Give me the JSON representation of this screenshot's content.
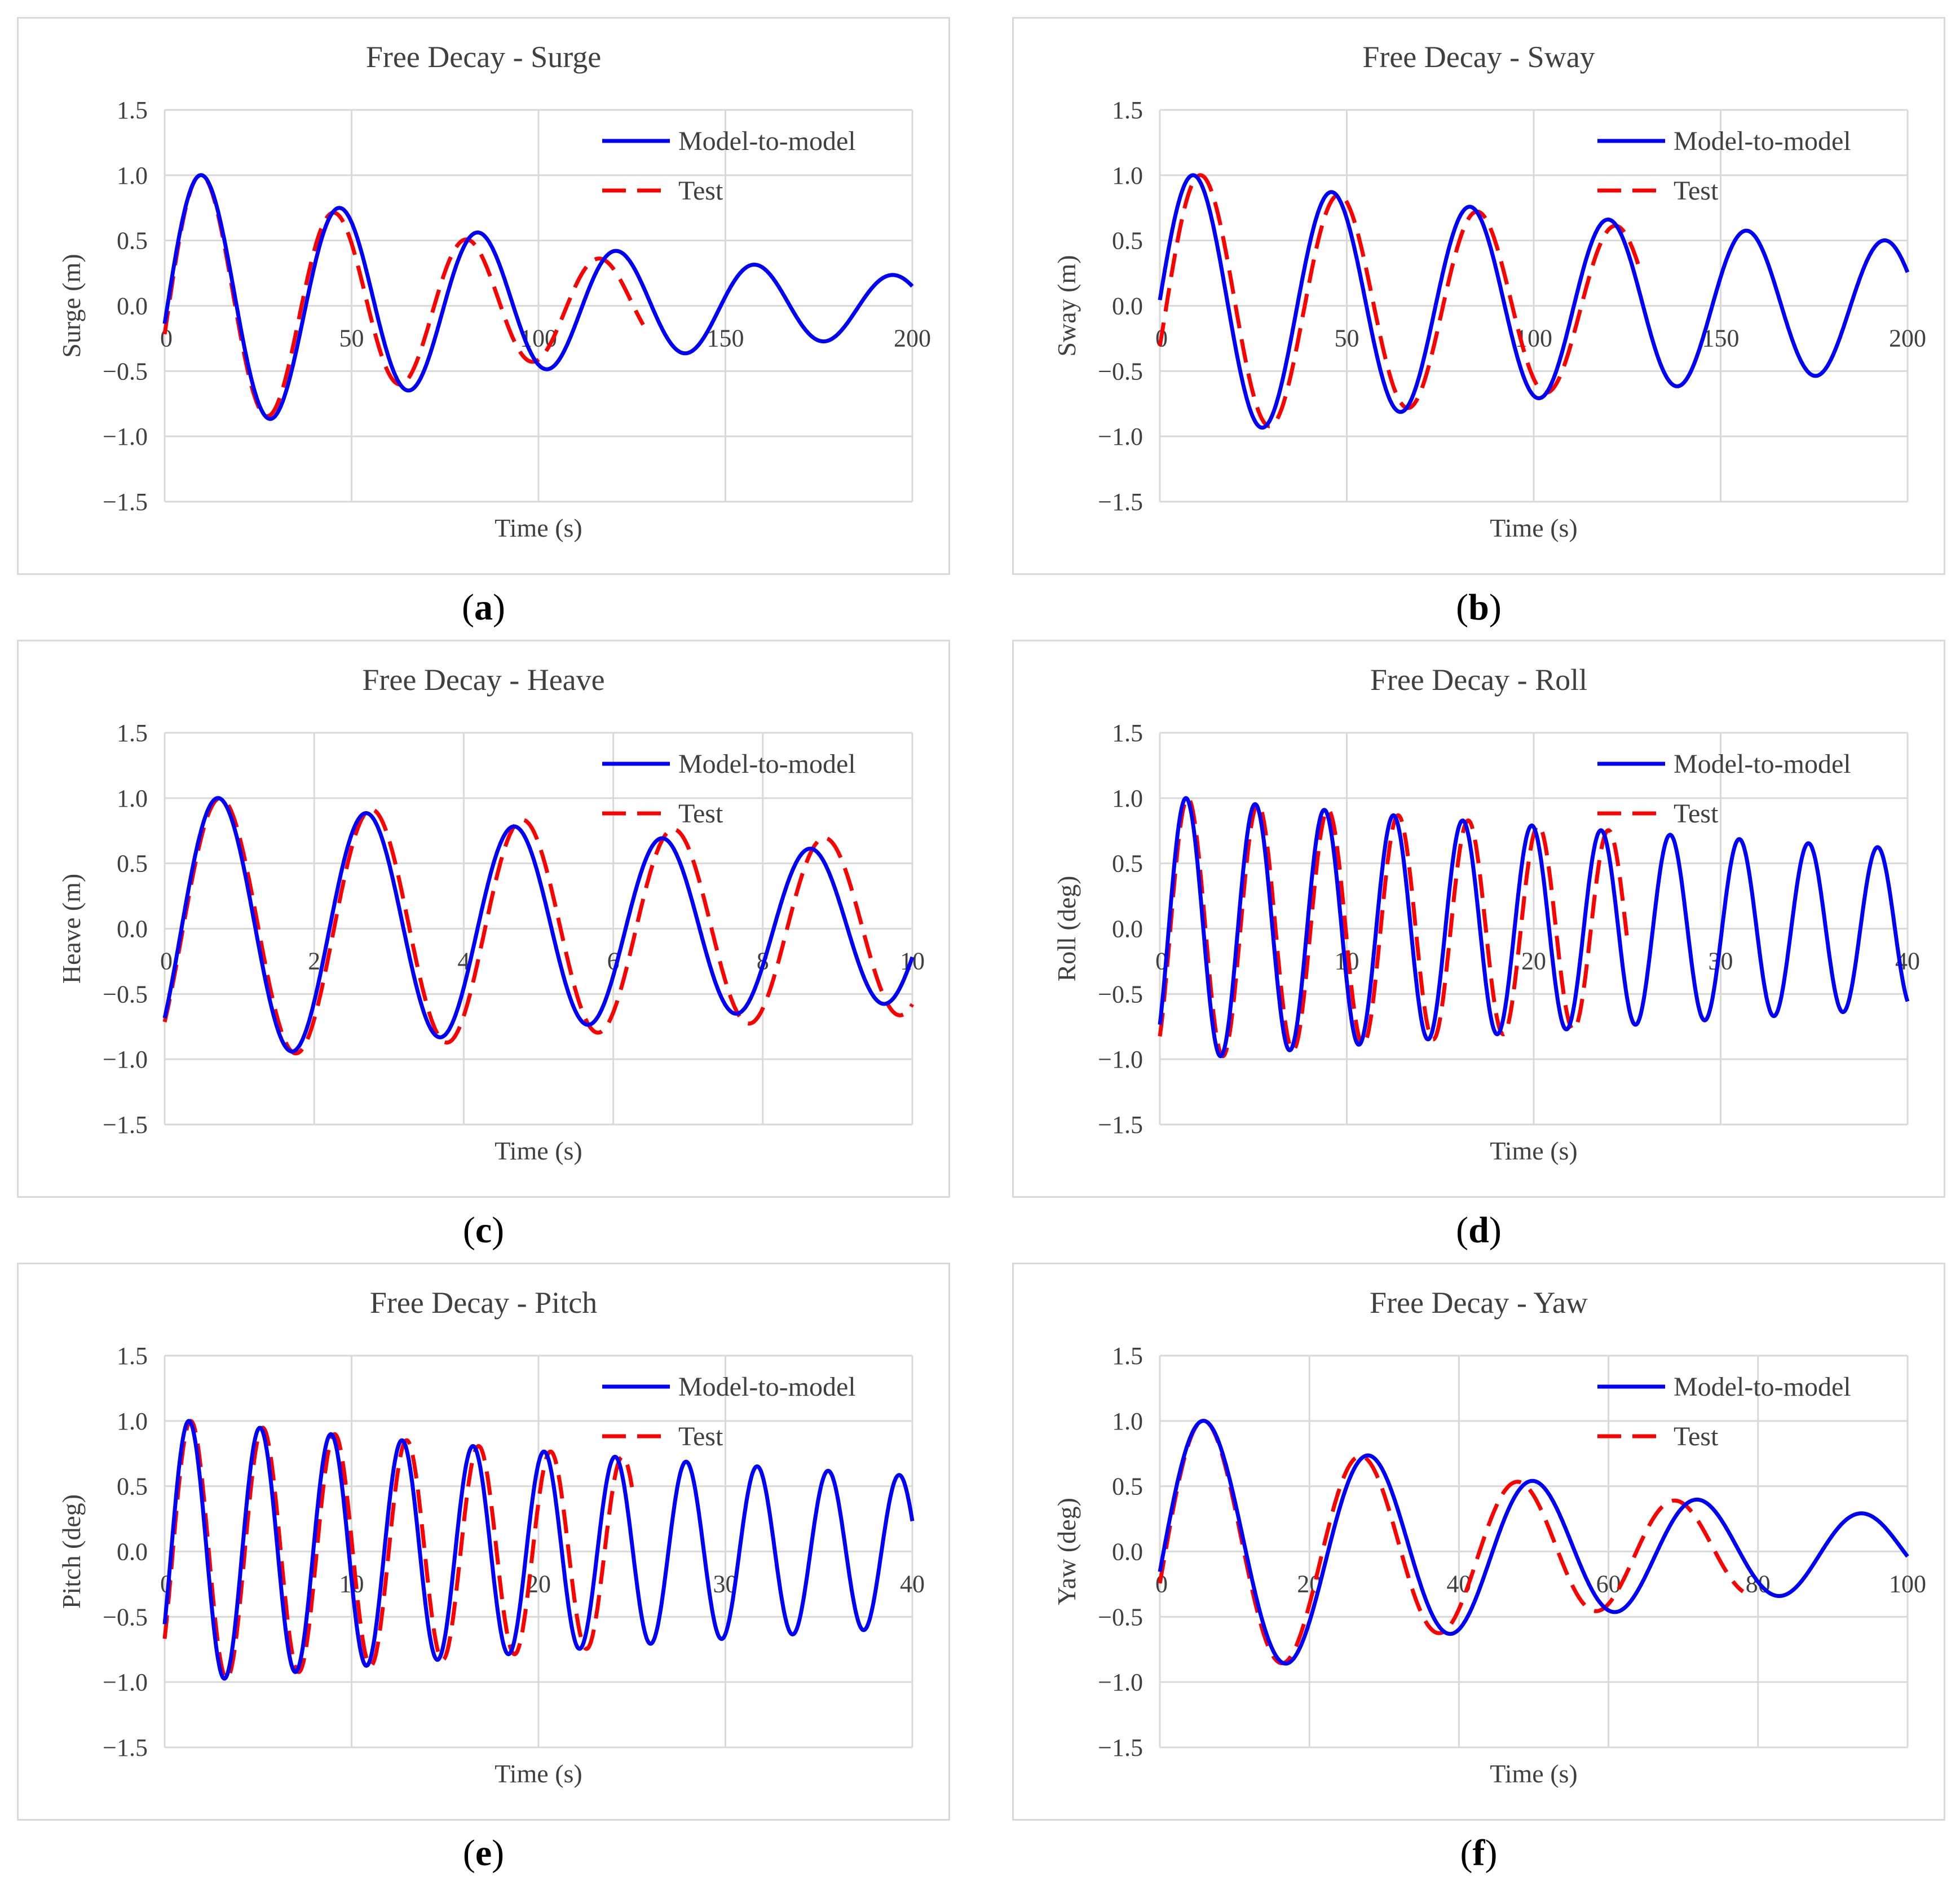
{
  "chart_data": [
    {
      "id": "a",
      "type": "line",
      "title": "Free Decay  - Surge",
      "xlabel": "Time (s)",
      "ylabel": "Surge (m)",
      "xlim": [
        0,
        200
      ],
      "ylim": [
        -1.5,
        1.5
      ],
      "xticks": [
        0,
        50,
        100,
        150,
        200
      ],
      "yticks": [
        -1.5,
        -1.0,
        -0.5,
        0.0,
        0.5,
        1.0,
        1.5
      ],
      "ytick_labels": [
        "−1.5",
        "−1.0",
        "−0.5",
        "0.0",
        "0.5",
        "1.0",
        "1.5"
      ],
      "legend": [
        "Model-to-model",
        "Test"
      ],
      "caption": "a",
      "series": [
        {
          "name": "Model-to-model",
          "color": "#0000ff",
          "style": "solid",
          "x0": 0,
          "x1": 200,
          "A0": 1.0,
          "period": 37,
          "zeta": 0.046,
          "t0": 10
        },
        {
          "name": "Test",
          "color": "#ff0000",
          "style": "dashed",
          "x0": 0,
          "x1": 128,
          "A0": 1.0,
          "period": 35.5,
          "zeta": 0.054,
          "t0": 10
        }
      ]
    },
    {
      "id": "b",
      "type": "line",
      "title": "Free Decay  - Sway",
      "xlabel": "Time (s)",
      "ylabel": "Sway (m)",
      "xlim": [
        0,
        200
      ],
      "ylim": [
        -1.5,
        1.5
      ],
      "xticks": [
        0,
        50,
        100,
        150,
        200
      ],
      "yticks": [
        -1.5,
        -1.0,
        -0.5,
        0.0,
        0.5,
        1.0,
        1.5
      ],
      "ytick_labels": [
        "−1.5",
        "−1.0",
        "−0.5",
        "0.0",
        "0.5",
        "1.0",
        "1.5"
      ],
      "legend": [
        "Model-to-model",
        "Test"
      ],
      "caption": "b",
      "series": [
        {
          "name": "Model-to-model",
          "color": "#0000ff",
          "style": "solid",
          "x0": 0,
          "x1": 200,
          "A0": 1.0,
          "period": 37,
          "zeta": 0.022,
          "t0": 9
        },
        {
          "name": "Test",
          "color": "#ff0000",
          "style": "dashed",
          "x0": 0,
          "x1": 128,
          "A0": 1.0,
          "period": 37,
          "zeta": 0.026,
          "t0": 11
        }
      ]
    },
    {
      "id": "c",
      "type": "line",
      "title": "Free Decay  - Heave",
      "xlabel": "Time (s)",
      "ylabel": "Heave (m)",
      "xlim": [
        0,
        10
      ],
      "ylim": [
        -1.5,
        1.5
      ],
      "xticks": [
        0,
        2,
        4,
        6,
        8,
        10
      ],
      "yticks": [
        -1.5,
        -1.0,
        -0.5,
        0.0,
        0.5,
        1.0,
        1.5
      ],
      "ytick_labels": [
        "−1.5",
        "−1.0",
        "−0.5",
        "0.0",
        "0.5",
        "1.0",
        "1.5"
      ],
      "legend": [
        "Model-to-model",
        "Test"
      ],
      "caption": "c",
      "series": [
        {
          "name": "Model-to-model",
          "color": "#0000ff",
          "style": "solid",
          "x0": 0,
          "x1": 10,
          "A0": 1.0,
          "period": 1.98,
          "zeta": 0.0195,
          "t0": 0.72
        },
        {
          "name": "Test",
          "color": "#ff0000",
          "style": "dashed",
          "x0": 0,
          "x1": 10,
          "A0": 1.0,
          "period": 2.02,
          "zeta": 0.0145,
          "t0": 0.75
        }
      ]
    },
    {
      "id": "d",
      "type": "line",
      "title": "Free Decay  - Roll",
      "xlabel": "Time (s)",
      "ylabel": "Roll (deg)",
      "xlim": [
        0,
        40
      ],
      "ylim": [
        -1.5,
        1.5
      ],
      "xticks": [
        0,
        10,
        20,
        30,
        40
      ],
      "yticks": [
        -1.5,
        -1.0,
        -0.5,
        0.0,
        0.5,
        1.0,
        1.5
      ],
      "ytick_labels": [
        "−1.5",
        "−1.0",
        "−0.5",
        "0.0",
        "0.5",
        "1.0",
        "1.5"
      ],
      "legend": [
        "Model-to-model",
        "Test"
      ],
      "caption": "d",
      "series": [
        {
          "name": "Model-to-model",
          "color": "#0000ff",
          "style": "solid",
          "x0": 0,
          "x1": 40,
          "A0": 1.0,
          "period": 3.7,
          "zeta": 0.0075,
          "t0": 1.4
        },
        {
          "name": "Test",
          "color": "#ff0000",
          "style": "dashed",
          "x0": 0,
          "x1": 25,
          "A0": 1.0,
          "period": 3.75,
          "zeta": 0.0075,
          "t0": 1.5
        }
      ]
    },
    {
      "id": "e",
      "type": "line",
      "title": "Free Decay  - Pitch",
      "xlabel": "Time (s)",
      "ylabel": "Pitch (deg)",
      "xlim": [
        0,
        40
      ],
      "ylim": [
        -1.5,
        1.5
      ],
      "xticks": [
        0,
        10,
        20,
        30,
        40
      ],
      "yticks": [
        -1.5,
        -1.0,
        -0.5,
        0.0,
        0.5,
        1.0,
        1.5
      ],
      "ytick_labels": [
        "−1.5",
        "−1.0",
        "−0.5",
        "0.0",
        "0.5",
        "1.0",
        "1.5"
      ],
      "legend": [
        "Model-to-model",
        "Test"
      ],
      "caption": "e",
      "series": [
        {
          "name": "Model-to-model",
          "color": "#0000ff",
          "style": "solid",
          "x0": 0,
          "x1": 40,
          "A0": 1.0,
          "period": 3.8,
          "zeta": 0.0085,
          "t0": 1.3
        },
        {
          "name": "Test",
          "color": "#ff0000",
          "style": "dashed",
          "x0": 0,
          "x1": 25,
          "A0": 1.0,
          "period": 3.85,
          "zeta": 0.0085,
          "t0": 1.4
        }
      ]
    },
    {
      "id": "f",
      "type": "line",
      "title": "Free Decay  - Yaw",
      "xlabel": "Time (s)",
      "ylabel": "Yaw (deg)",
      "xlim": [
        0,
        100
      ],
      "ylim": [
        -1.5,
        1.5
      ],
      "xticks": [
        0,
        20,
        40,
        60,
        80,
        100
      ],
      "yticks": [
        -1.5,
        -1.0,
        -0.5,
        0.0,
        0.5,
        1.0,
        1.5
      ],
      "ytick_labels": [
        "−1.5",
        "−1.0",
        "−0.5",
        "0.0",
        "0.5",
        "1.0",
        "1.5"
      ],
      "legend": [
        "Model-to-model",
        "Test"
      ],
      "caption": "f",
      "series": [
        {
          "name": "Model-to-model",
          "color": "#0000ff",
          "style": "solid",
          "x0": 0,
          "x1": 100,
          "A0": 1.0,
          "period": 22,
          "zeta": 0.049,
          "t0": 6
        },
        {
          "name": "Test",
          "color": "#ff0000",
          "style": "dashed",
          "x0": 0,
          "x1": 78,
          "A0": 1.0,
          "period": 21,
          "zeta": 0.05,
          "t0": 6
        }
      ]
    }
  ]
}
